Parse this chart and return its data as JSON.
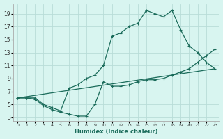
{
  "xlabel": "Humidex (Indice chaleur)",
  "bg_color": "#d8f5f0",
  "grid_color": "#b8ddd8",
  "line_color": "#1a6b5a",
  "xlim": [
    -0.5,
    23.5
  ],
  "ylim": [
    2.5,
    20.5
  ],
  "xticks": [
    0,
    1,
    2,
    3,
    4,
    5,
    6,
    7,
    8,
    9,
    10,
    11,
    12,
    13,
    14,
    15,
    16,
    17,
    18,
    19,
    20,
    21,
    22,
    23
  ],
  "yticks": [
    3,
    5,
    7,
    9,
    11,
    13,
    15,
    17,
    19
  ],
  "series1_x": [
    0,
    1,
    2,
    3,
    4,
    5,
    6,
    7,
    8,
    9,
    10,
    11,
    12,
    13,
    14,
    15,
    16,
    17,
    18,
    19,
    20,
    21,
    22,
    23
  ],
  "series1_y": [
    6.0,
    6.0,
    5.8,
    4.8,
    4.2,
    3.8,
    3.5,
    3.2,
    3.2,
    5.0,
    8.5,
    7.8,
    7.8,
    8.0,
    8.5,
    8.8,
    8.8,
    9.0,
    9.5,
    10.0,
    10.5,
    11.5,
    12.5,
    13.5
  ],
  "series2_x": [
    0,
    1,
    2,
    3,
    4,
    5,
    6,
    7,
    8,
    9,
    10,
    11,
    12,
    13,
    14,
    15,
    16,
    17,
    18,
    19,
    20,
    21,
    22,
    23
  ],
  "series2_y": [
    6.0,
    6.0,
    6.0,
    5.0,
    4.5,
    4.0,
    7.5,
    8.0,
    9.0,
    9.5,
    11.0,
    15.5,
    16.0,
    17.0,
    17.5,
    19.5,
    19.0,
    18.5,
    19.5,
    16.5,
    14.0,
    13.0,
    11.5,
    10.5
  ],
  "series3_x": [
    0,
    23
  ],
  "series3_y": [
    6.0,
    10.5
  ]
}
